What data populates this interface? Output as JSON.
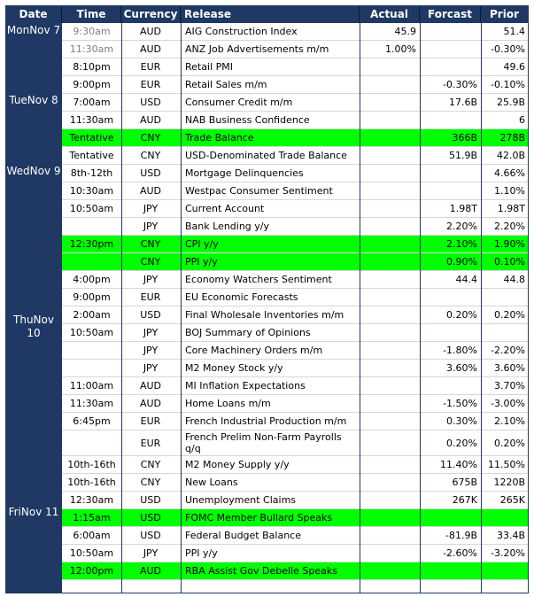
{
  "headers": {
    "date": "Date",
    "time": "Time",
    "currency": "Currency",
    "release": "Release",
    "actual": "Actual",
    "forecast": "Forcast",
    "prior": "Prior"
  },
  "dates": [
    "MonNov 7",
    "TueNov 8",
    "WedNov 9",
    "ThuNov 10",
    "FriNov 11"
  ],
  "rows": [
    {
      "time": "9:30am",
      "currency": "AUD",
      "release": "AIG Construction Index",
      "actual": "45.9",
      "forecast": "",
      "prior": "51.4",
      "muted": true
    },
    {
      "time": "11:30am",
      "currency": "AUD",
      "release": "ANZ Job Advertisements m/m",
      "actual": "1.00%",
      "forecast": "",
      "prior": "-0.30%",
      "muted": true
    },
    {
      "time": "8:10pm",
      "currency": "EUR",
      "release": "Retail PMI",
      "actual": "",
      "forecast": "",
      "prior": "49.6"
    },
    {
      "time": "9:00pm",
      "currency": "EUR",
      "release": "Retail Sales m/m",
      "actual": "",
      "forecast": "-0.30%",
      "prior": "-0.10%"
    },
    {
      "time": "7:00am",
      "currency": "USD",
      "release": "Consumer Credit m/m",
      "actual": "",
      "forecast": "17.6B",
      "prior": "25.9B"
    },
    {
      "time": "11:30am",
      "currency": "AUD",
      "release": "NAB Business Confidence",
      "actual": "",
      "forecast": "",
      "prior": "6"
    },
    {
      "time": "Tentative",
      "currency": "CNY",
      "release": "Trade Balance",
      "actual": "",
      "forecast": "366B",
      "prior": "278B",
      "highlight": true
    },
    {
      "time": "Tentative",
      "currency": "CNY",
      "release": "USD-Denominated Trade Balance",
      "actual": "",
      "forecast": "51.9B",
      "prior": "42.0B"
    },
    {
      "time": "8th-12th",
      "currency": "USD",
      "release": "Mortgage Delinquencies",
      "actual": "",
      "forecast": "",
      "prior": "4.66%"
    },
    {
      "time": "10:30am",
      "currency": "AUD",
      "release": "Westpac Consumer Sentiment",
      "actual": "",
      "forecast": "",
      "prior": "1.10%"
    },
    {
      "time": "10:50am",
      "currency": "JPY",
      "release": "Current Account",
      "actual": "",
      "forecast": "1.98T",
      "prior": "1.98T"
    },
    {
      "time": "",
      "currency": "JPY",
      "release": "Bank Lending y/y",
      "actual": "",
      "forecast": "2.20%",
      "prior": "2.20%"
    },
    {
      "time": "12:30pm",
      "currency": "CNY",
      "release": "CPI y/y",
      "actual": "",
      "forecast": "2.10%",
      "prior": "1.90%",
      "highlight": true
    },
    {
      "time": "",
      "currency": "CNY",
      "release": "PPI y/y",
      "actual": "",
      "forecast": "0.90%",
      "prior": "0.10%",
      "highlight": true
    },
    {
      "time": "4:00pm",
      "currency": "JPY",
      "release": "Economy Watchers Sentiment",
      "actual": "",
      "forecast": "44.4",
      "prior": "44.8"
    },
    {
      "time": "9:00pm",
      "currency": "EUR",
      "release": "EU Economic Forecasts",
      "actual": "",
      "forecast": "",
      "prior": ""
    },
    {
      "time": "2:00am",
      "currency": "USD",
      "release": "Final Wholesale Inventories m/m",
      "actual": "",
      "forecast": "0.20%",
      "prior": "0.20%"
    },
    {
      "time": "10:50am",
      "currency": "JPY",
      "release": "BOJ Summary of Opinions",
      "actual": "",
      "forecast": "",
      "prior": ""
    },
    {
      "time": "",
      "currency": "JPY",
      "release": "Core Machinery Orders m/m",
      "actual": "",
      "forecast": "-1.80%",
      "prior": "-2.20%"
    },
    {
      "time": "",
      "currency": "JPY",
      "release": "M2 Money Stock y/y",
      "actual": "",
      "forecast": "3.60%",
      "prior": "3.60%"
    },
    {
      "time": "11:00am",
      "currency": "AUD",
      "release": "MI Inflation Expectations",
      "actual": "",
      "forecast": "",
      "prior": "3.70%"
    },
    {
      "time": "11:30am",
      "currency": "AUD",
      "release": "Home Loans m/m",
      "actual": "",
      "forecast": "-1.50%",
      "prior": "-3.00%"
    },
    {
      "time": "6:45pm",
      "currency": "EUR",
      "release": "French Industrial Production m/m",
      "actual": "",
      "forecast": "0.30%",
      "prior": "2.10%"
    },
    {
      "time": "",
      "currency": "EUR",
      "release": "French Prelim Non-Farm Payrolls q/q",
      "actual": "",
      "forecast": "0.20%",
      "prior": "0.20%"
    },
    {
      "time": "10th-16th",
      "currency": "CNY",
      "release": "M2 Money Supply y/y",
      "actual": "",
      "forecast": "11.40%",
      "prior": "11.50%"
    },
    {
      "time": "10th-16th",
      "currency": "CNY",
      "release": "New Loans",
      "actual": "",
      "forecast": "675B",
      "prior": "1220B"
    },
    {
      "time": "12:30am",
      "currency": "USD",
      "release": "Unemployment Claims",
      "actual": "",
      "forecast": "267K",
      "prior": "265K"
    },
    {
      "time": "1:15am",
      "currency": "USD",
      "release": "FOMC Member Bullard Speaks",
      "actual": "",
      "forecast": "",
      "prior": "",
      "highlight": true
    },
    {
      "time": "6:00am",
      "currency": "USD",
      "release": "Federal Budget Balance",
      "actual": "",
      "forecast": "-81.9B",
      "prior": "33.4B"
    },
    {
      "time": "10:50am",
      "currency": "JPY",
      "release": "PPI y/y",
      "actual": "",
      "forecast": "-2.60%",
      "prior": "-3.20%"
    },
    {
      "time": "12:00pm",
      "currency": "AUD",
      "release": "RBA Assist Gov Debelle Speaks",
      "actual": "",
      "forecast": "",
      "prior": "",
      "highlight": true
    }
  ]
}
